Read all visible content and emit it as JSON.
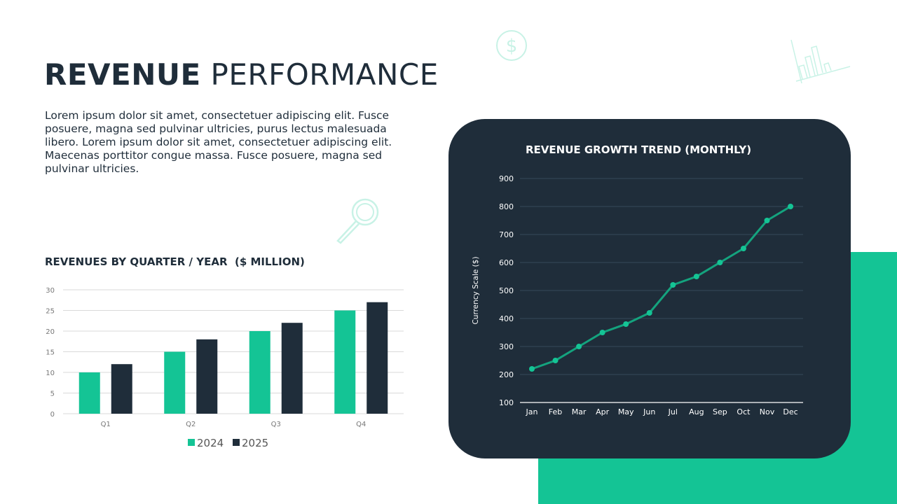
{
  "header": {
    "title_bold": "REVENUE",
    "title_light": "PERFORMANCE"
  },
  "description": "Lorem ipsum dolor sit amet, consectetuer adipiscing elit. Fusce posuere, magna sed pulvinar ultricies, purus lectus malesuada libero. Lorem ipsum dolor sit amet, consectetuer adipiscing elit. Maecenas porttitor congue massa. Fusce posuere, magna sed pulvinar ultricies.",
  "icons": [
    "dollar-coin-icon",
    "magnifier-icon",
    "bar-chart-icon"
  ],
  "colors": {
    "accent": "#14c495",
    "dark": "#1f2d3a",
    "line": "#14a37e"
  },
  "chart_data": [
    {
      "type": "bar",
      "title": "REVENUES BY QUARTER / YEAR  ($ MILLION)",
      "categories": [
        "Q1",
        "Q2",
        "Q3",
        "Q4"
      ],
      "series": [
        {
          "name": "2024",
          "color": "#14c495",
          "values": [
            10,
            15,
            20,
            25
          ]
        },
        {
          "name": "2025",
          "color": "#1f2d3a",
          "values": [
            12,
            18,
            22,
            27
          ]
        }
      ],
      "ylim": [
        0,
        30
      ],
      "yticks": [
        0,
        5,
        10,
        15,
        20,
        25,
        30
      ],
      "grid": true,
      "legend": "bottom"
    },
    {
      "type": "line",
      "title": "REVENUE GROWTH TREND (MONTHLY)",
      "ylabel": "Currency Scale ($)",
      "categories": [
        "Jan",
        "Feb",
        "Mar",
        "Apr",
        "May",
        "Jun",
        "Jul",
        "Aug",
        "Sep",
        "Oct",
        "Nov",
        "Dec"
      ],
      "values": [
        220,
        250,
        300,
        350,
        380,
        420,
        520,
        550,
        600,
        650,
        750,
        800
      ],
      "ylim": [
        100,
        900
      ],
      "yticks": [
        100,
        200,
        300,
        400,
        500,
        600,
        700,
        800,
        900
      ],
      "grid": true
    }
  ]
}
